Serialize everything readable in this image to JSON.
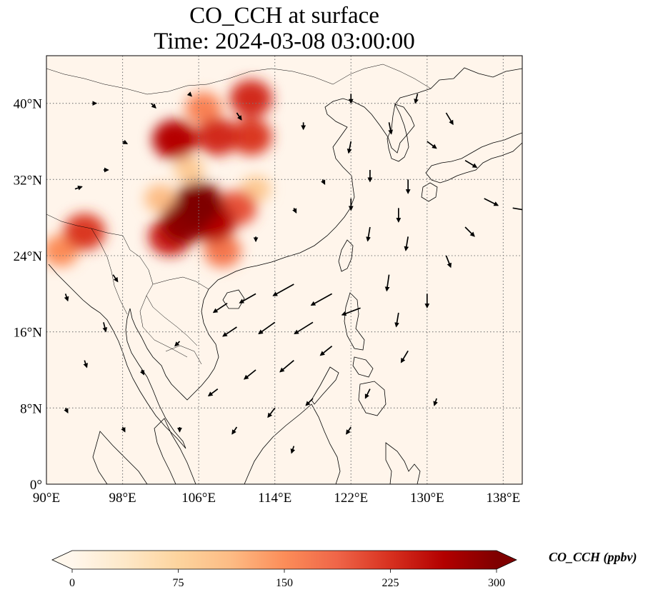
{
  "title": {
    "line1": "CO_CCH at surface",
    "line2": "Time: 2024-03-08 03:00:00"
  },
  "map": {
    "lon_range": [
      90,
      140
    ],
    "lat_range": [
      0,
      45
    ],
    "background_color": "#fff5eb",
    "gridlines": true,
    "lon_ticks": [
      {
        "value": 90,
        "label": "90°E"
      },
      {
        "value": 98,
        "label": "98°E"
      },
      {
        "value": 106,
        "label": "106°E"
      },
      {
        "value": 114,
        "label": "114°E"
      },
      {
        "value": 122,
        "label": "122°E"
      },
      {
        "value": 130,
        "label": "130°E"
      },
      {
        "value": 138,
        "label": "138°E"
      }
    ],
    "lat_ticks": [
      {
        "value": 0,
        "label": "0°"
      },
      {
        "value": 8,
        "label": "8°N"
      },
      {
        "value": 16,
        "label": "16°N"
      },
      {
        "value": 24,
        "label": "24°N"
      },
      {
        "value": 32,
        "label": "32°N"
      },
      {
        "value": 40,
        "label": "40°N"
      }
    ],
    "concentration_regions": [
      {
        "lon": 106,
        "lat": 29.5,
        "value": 300
      },
      {
        "lon": 104.5,
        "lat": 27.5,
        "value": 290
      },
      {
        "lon": 107.5,
        "lat": 27.5,
        "value": 260
      },
      {
        "lon": 103,
        "lat": 26,
        "value": 240
      },
      {
        "lon": 110,
        "lat": 29,
        "value": 200
      },
      {
        "lon": 108.5,
        "lat": 24.5,
        "value": 170
      },
      {
        "lon": 103.5,
        "lat": 36.2,
        "value": 260
      },
      {
        "lon": 108,
        "lat": 36.5,
        "value": 230
      },
      {
        "lon": 111.5,
        "lat": 36.5,
        "value": 220
      },
      {
        "lon": 111.5,
        "lat": 40.5,
        "value": 230
      },
      {
        "lon": 106.5,
        "lat": 39.5,
        "value": 160
      },
      {
        "lon": 94,
        "lat": 26.5,
        "value": 220
      },
      {
        "lon": 91.5,
        "lat": 24.5,
        "value": 150
      },
      {
        "lon": 105,
        "lat": 33,
        "value": 90
      },
      {
        "lon": 102,
        "lat": 30,
        "value": 110
      },
      {
        "lon": 112,
        "lat": 31,
        "value": 90
      }
    ],
    "wind_vectors": [
      {
        "lon": 120,
        "lat": 20,
        "u": -9,
        "v": -5
      },
      {
        "lon": 116,
        "lat": 21,
        "u": -9,
        "v": -5
      },
      {
        "lon": 112,
        "lat": 20,
        "u": -7,
        "v": -4
      },
      {
        "lon": 109,
        "lat": 19,
        "u": -6,
        "v": -4
      },
      {
        "lon": 118,
        "lat": 17,
        "u": -8,
        "v": -5
      },
      {
        "lon": 114,
        "lat": 17,
        "u": -7,
        "v": -5
      },
      {
        "lon": 110,
        "lat": 16.5,
        "u": -6,
        "v": -4
      },
      {
        "lon": 123,
        "lat": 18.5,
        "u": -8,
        "v": -3
      },
      {
        "lon": 120,
        "lat": 14.5,
        "u": -5,
        "v": -4
      },
      {
        "lon": 116,
        "lat": 13,
        "u": -6,
        "v": -5
      },
      {
        "lon": 112,
        "lat": 12,
        "u": -5,
        "v": -4
      },
      {
        "lon": 108,
        "lat": 10,
        "u": -4,
        "v": -3
      },
      {
        "lon": 114,
        "lat": 8,
        "u": -3,
        "v": -4
      },
      {
        "lon": 118,
        "lat": 9,
        "u": -3,
        "v": -3
      },
      {
        "lon": 126,
        "lat": 22,
        "u": -1,
        "v": -7
      },
      {
        "lon": 127,
        "lat": 18,
        "u": -1,
        "v": -6
      },
      {
        "lon": 130,
        "lat": 20,
        "u": 0,
        "v": -6
      },
      {
        "lon": 128,
        "lat": 14,
        "u": -3,
        "v": -5
      },
      {
        "lon": 124,
        "lat": 27,
        "u": -1,
        "v": -6
      },
      {
        "lon": 128,
        "lat": 26,
        "u": -1,
        "v": -6
      },
      {
        "lon": 132,
        "lat": 24,
        "u": 2,
        "v": -5
      },
      {
        "lon": 134,
        "lat": 27,
        "u": 4,
        "v": -4
      },
      {
        "lon": 136,
        "lat": 30,
        "u": 6,
        "v": -3
      },
      {
        "lon": 139,
        "lat": 29,
        "u": 6,
        "v": -1
      },
      {
        "lon": 124,
        "lat": 33,
        "u": 0,
        "v": -5
      },
      {
        "lon": 128,
        "lat": 32,
        "u": 0,
        "v": -6
      },
      {
        "lon": 122,
        "lat": 36,
        "u": -1,
        "v": -5
      },
      {
        "lon": 126,
        "lat": 38,
        "u": 1,
        "v": -5
      },
      {
        "lon": 130,
        "lat": 36,
        "u": 4,
        "v": -3
      },
      {
        "lon": 132,
        "lat": 39,
        "u": 3,
        "v": -5
      },
      {
        "lon": 134,
        "lat": 34,
        "u": 5,
        "v": -3
      },
      {
        "lon": 122,
        "lat": 41,
        "u": 0,
        "v": -4
      },
      {
        "lon": 129,
        "lat": 41,
        "u": -1,
        "v": -4
      },
      {
        "lon": 96,
        "lat": 17,
        "u": 1,
        "v": -4
      },
      {
        "lon": 94,
        "lat": 13,
        "u": 1,
        "v": -3
      },
      {
        "lon": 100,
        "lat": 12,
        "u": 1,
        "v": -2
      },
      {
        "lon": 104,
        "lat": 15,
        "u": -2,
        "v": -2
      },
      {
        "lon": 97,
        "lat": 22,
        "u": 2,
        "v": -3
      },
      {
        "lon": 92,
        "lat": 20,
        "u": 1,
        "v": -3
      },
      {
        "lon": 96,
        "lat": 33,
        "u": 2,
        "v": 0
      },
      {
        "lon": 93,
        "lat": 31,
        "u": 3,
        "v": 1
      },
      {
        "lon": 98,
        "lat": 36,
        "u": 2,
        "v": -1
      },
      {
        "lon": 95,
        "lat": 40,
        "u": 1,
        "v": 0
      },
      {
        "lon": 117,
        "lat": 38,
        "u": 0,
        "v": -3
      },
      {
        "lon": 116,
        "lat": 29,
        "u": 1,
        "v": -2
      },
      {
        "lon": 119,
        "lat": 32,
        "u": 1,
        "v": -2
      },
      {
        "lon": 112,
        "lat": 26,
        "u": 0,
        "v": -2
      },
      {
        "lon": 110,
        "lat": 39,
        "u": 2,
        "v": -3
      },
      {
        "lon": 105,
        "lat": 41,
        "u": 1,
        "v": -1
      },
      {
        "lon": 101,
        "lat": 40,
        "u": 2,
        "v": -2
      },
      {
        "lon": 124,
        "lat": 10,
        "u": -2,
        "v": -4
      },
      {
        "lon": 122,
        "lat": 6,
        "u": -2,
        "v": -3
      },
      {
        "lon": 110,
        "lat": 6,
        "u": -2,
        "v": -3
      },
      {
        "lon": 104,
        "lat": 6,
        "u": 0,
        "v": -2
      },
      {
        "lon": 98,
        "lat": 6,
        "u": 1,
        "v": -2
      },
      {
        "lon": 92,
        "lat": 8,
        "u": 1,
        "v": -2
      },
      {
        "lon": 131,
        "lat": 9,
        "u": -1,
        "v": -3
      },
      {
        "lon": 116,
        "lat": 4,
        "u": -1,
        "v": -3
      },
      {
        "lon": 122,
        "lat": 30,
        "u": 0,
        "v": -5
      },
      {
        "lon": 127,
        "lat": 29,
        "u": 0,
        "v": -6
      }
    ]
  },
  "colorbar": {
    "min": 0,
    "max": 300,
    "extend": "both",
    "colormap": "OrRd",
    "stops": [
      "#fff7ec",
      "#fee8c8",
      "#fdd49e",
      "#fdbb84",
      "#fc8d59",
      "#ef6548",
      "#d7301f",
      "#b30000",
      "#7f0000"
    ],
    "ticks": [
      {
        "value": 0,
        "label": "0"
      },
      {
        "value": 75,
        "label": "75"
      },
      {
        "value": 150,
        "label": "150"
      },
      {
        "value": 225,
        "label": "225"
      },
      {
        "value": 300,
        "label": "300"
      }
    ],
    "label": "CO_CCH (ppbv)"
  }
}
